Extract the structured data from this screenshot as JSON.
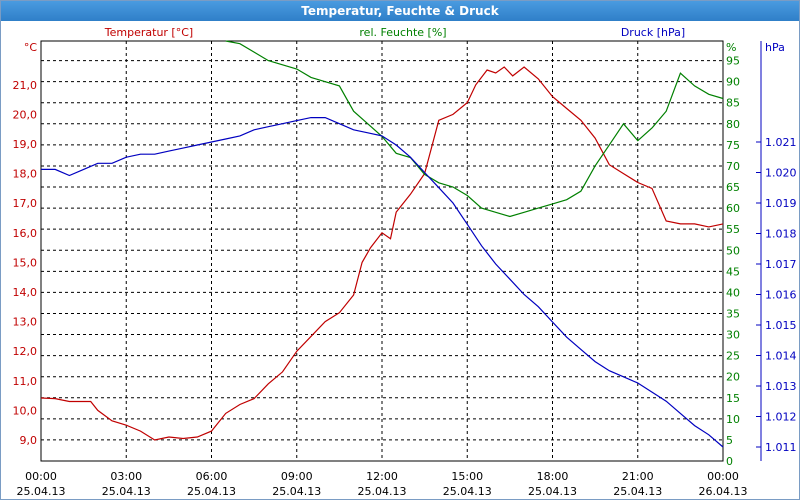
{
  "window": {
    "title": "Temperatur, Feuchte & Druck"
  },
  "chart_data": {
    "type": "line",
    "title": "Temperatur, Feuchte & Druck",
    "grid": true,
    "x_ticks": [
      {
        "time": "00:00",
        "date": "25.04.13"
      },
      {
        "time": "03:00",
        "date": "25.04.13"
      },
      {
        "time": "06:00",
        "date": "25.04.13"
      },
      {
        "time": "09:00",
        "date": "25.04.13"
      },
      {
        "time": "12:00",
        "date": "25.04.13"
      },
      {
        "time": "15:00",
        "date": "25.04.13"
      },
      {
        "time": "18:00",
        "date": "25.04.13"
      },
      {
        "time": "21:00",
        "date": "25.04.13"
      },
      {
        "time": "00:00",
        "date": "26.04.13"
      }
    ],
    "x_range_hours": [
      0,
      24
    ],
    "axes": {
      "temperature": {
        "label": "Temperatur [°C]",
        "unit": "°C",
        "side": "left",
        "color": "#c00000",
        "ticks": [
          "9,0",
          "10,0",
          "11,0",
          "12,0",
          "13,0",
          "14,0",
          "15,0",
          "16,0",
          "17,0",
          "18,0",
          "19,0",
          "20,0",
          "21,0"
        ]
      },
      "humidity": {
        "label": "rel. Feuchte [%]",
        "unit": "%",
        "side": "right-inner",
        "color": "#008000",
        "ticks": [
          "0",
          "5",
          "10",
          "15",
          "20",
          "25",
          "30",
          "35",
          "40",
          "45",
          "50",
          "55",
          "60",
          "65",
          "70",
          "75",
          "80",
          "85",
          "90",
          "95"
        ]
      },
      "pressure": {
        "label": "Druck [hPa]",
        "unit": "hPa",
        "side": "right-outer",
        "color": "#0000c0",
        "ticks": [
          "1.011",
          "1.012",
          "1.013",
          "1.014",
          "1.015",
          "1.016",
          "1.017",
          "1.018",
          "1.019",
          "1.020",
          "1.021"
        ]
      }
    },
    "series": [
      {
        "name": "Temperatur [°C]",
        "axis": "temperature",
        "color": "#c00000",
        "points": [
          [
            0,
            10.42
          ],
          [
            0.5,
            10.4
          ],
          [
            1,
            10.3
          ],
          [
            1.5,
            10.3
          ],
          [
            1.75,
            10.3
          ],
          [
            2,
            10.0
          ],
          [
            2.5,
            9.65
          ],
          [
            3,
            9.5
          ],
          [
            3.5,
            9.3
          ],
          [
            4,
            9.0
          ],
          [
            4.5,
            9.1
          ],
          [
            5,
            9.05
          ],
          [
            5.5,
            9.1
          ],
          [
            6,
            9.3
          ],
          [
            6.5,
            9.9
          ],
          [
            7,
            10.2
          ],
          [
            7.5,
            10.4
          ],
          [
            8,
            10.9
          ],
          [
            8.5,
            11.3
          ],
          [
            9,
            12.0
          ],
          [
            9.5,
            12.5
          ],
          [
            10,
            13.0
          ],
          [
            10.5,
            13.3
          ],
          [
            11,
            13.9
          ],
          [
            11.3,
            15.0
          ],
          [
            11.6,
            15.5
          ],
          [
            12,
            16.0
          ],
          [
            12.3,
            15.8
          ],
          [
            12.5,
            16.7
          ],
          [
            13,
            17.3
          ],
          [
            13.5,
            18.0
          ],
          [
            14,
            19.8
          ],
          [
            14.5,
            20.0
          ],
          [
            15,
            20.4
          ],
          [
            15.3,
            21.0
          ],
          [
            15.7,
            21.5
          ],
          [
            16,
            21.4
          ],
          [
            16.3,
            21.6
          ],
          [
            16.6,
            21.3
          ],
          [
            17,
            21.6
          ],
          [
            17.5,
            21.2
          ],
          [
            18,
            20.6
          ],
          [
            18.5,
            20.2
          ],
          [
            19,
            19.8
          ],
          [
            19.5,
            19.2
          ],
          [
            20,
            18.3
          ],
          [
            20.5,
            18.0
          ],
          [
            21,
            17.7
          ],
          [
            21.5,
            17.5
          ],
          [
            22,
            16.4
          ],
          [
            22.5,
            16.3
          ],
          [
            23,
            16.3
          ],
          [
            23.5,
            16.2
          ],
          [
            24,
            16.3
          ]
        ]
      },
      {
        "name": "rel. Feuchte [%]",
        "axis": "humidity",
        "color": "#008000",
        "points": [
          [
            6.5,
            100
          ],
          [
            7,
            99
          ],
          [
            7.5,
            97
          ],
          [
            8,
            95
          ],
          [
            8.5,
            94
          ],
          [
            9,
            93
          ],
          [
            9.5,
            91
          ],
          [
            10,
            90
          ],
          [
            10.5,
            89
          ],
          [
            11,
            83
          ],
          [
            11.5,
            80
          ],
          [
            12,
            77
          ],
          [
            12.5,
            73
          ],
          [
            13,
            72
          ],
          [
            13.5,
            68
          ],
          [
            14,
            66
          ],
          [
            14.5,
            65
          ],
          [
            15,
            63
          ],
          [
            15.5,
            60
          ],
          [
            16,
            59
          ],
          [
            16.5,
            58
          ],
          [
            17,
            59
          ],
          [
            17.5,
            60
          ],
          [
            18,
            61
          ],
          [
            18.5,
            62
          ],
          [
            19,
            64
          ],
          [
            19.5,
            70
          ],
          [
            20,
            75
          ],
          [
            20.5,
            80
          ],
          [
            21,
            76
          ],
          [
            21.5,
            79
          ],
          [
            22,
            83
          ],
          [
            22.5,
            92
          ],
          [
            23,
            89
          ],
          [
            23.5,
            87
          ],
          [
            24,
            86
          ]
        ]
      },
      {
        "name": "Druck [hPa]",
        "axis": "pressure",
        "color": "#0000c0",
        "points": [
          [
            0,
            1.0201
          ],
          [
            0.5,
            1.0201
          ],
          [
            1,
            1.0199
          ],
          [
            1.5,
            1.0201
          ],
          [
            2,
            1.0203
          ],
          [
            2.5,
            1.0203
          ],
          [
            3,
            1.0205
          ],
          [
            3.5,
            1.0206
          ],
          [
            4,
            1.0206
          ],
          [
            4.5,
            1.0207
          ],
          [
            5,
            1.0208
          ],
          [
            5.5,
            1.0209
          ],
          [
            6,
            1.021
          ],
          [
            6.5,
            1.0211
          ],
          [
            7,
            1.0212
          ],
          [
            7.5,
            1.0214
          ],
          [
            8,
            1.0215
          ],
          [
            8.5,
            1.0216
          ],
          [
            9,
            1.0217
          ],
          [
            9.5,
            1.0218
          ],
          [
            10,
            1.0218
          ],
          [
            10.5,
            1.0216
          ],
          [
            11,
            1.0214
          ],
          [
            11.5,
            1.0213
          ],
          [
            12,
            1.0212
          ],
          [
            12.5,
            1.0209
          ],
          [
            13,
            1.0205
          ],
          [
            13.5,
            1.02
          ],
          [
            14,
            1.0195
          ],
          [
            14.5,
            1.019
          ],
          [
            15,
            1.0183
          ],
          [
            15.5,
            1.0176
          ],
          [
            16,
            1.017
          ],
          [
            16.5,
            1.0165
          ],
          [
            17,
            1.016
          ],
          [
            17.5,
            1.0156
          ],
          [
            18,
            1.0151
          ],
          [
            18.5,
            1.0146
          ],
          [
            19,
            1.0142
          ],
          [
            19.5,
            1.0138
          ],
          [
            20,
            1.0135
          ],
          [
            20.5,
            1.0133
          ],
          [
            21,
            1.0131
          ],
          [
            21.5,
            1.0128
          ],
          [
            22,
            1.0125
          ],
          [
            22.5,
            1.0121
          ],
          [
            23,
            1.0117
          ],
          [
            23.5,
            1.0114
          ],
          [
            24,
            1.011
          ]
        ]
      }
    ]
  }
}
